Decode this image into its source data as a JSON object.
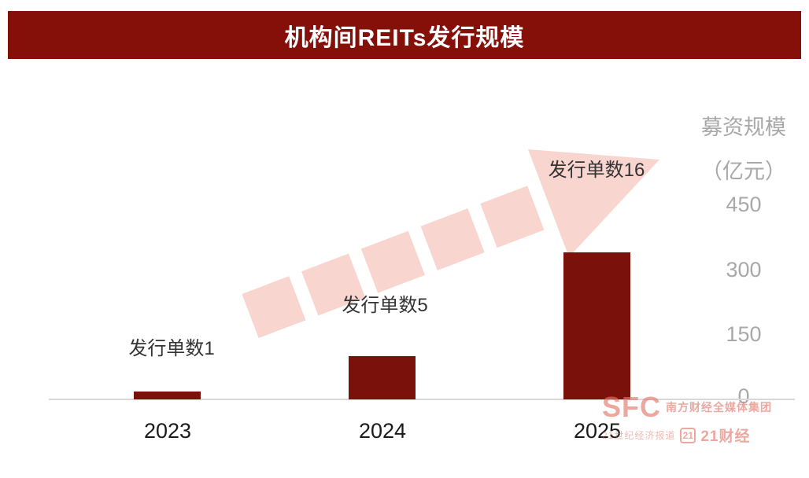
{
  "title": "机构间REITs发行规模",
  "chart_data": {
    "type": "bar",
    "title": "机构间REITs发行规模",
    "categories": [
      "2023",
      "2024",
      "2025"
    ],
    "values": [
      18,
      100,
      340
    ],
    "bar_labels": [
      "发行单数1",
      "发行单数5",
      "发行单数16"
    ],
    "y_axis_title": [
      "募资规模",
      "（亿元）"
    ],
    "yticks": [
      "450",
      "300",
      "150",
      "0"
    ],
    "ylim": [
      0,
      450
    ],
    "grid": false,
    "legend": "none",
    "bar_color": "#7A110B",
    "arrow_color": "#F8D5CE"
  },
  "colors": {
    "title_bg": "#85100A",
    "title_text": "#FFFFFF",
    "axis_text": "#A8A8A8",
    "label_text": "#333333",
    "watermark": "#E27A6C"
  },
  "watermark": {
    "brand": "SFC",
    "brand_text": "南方财经全媒体集团",
    "sub_text": "21世纪经济报道",
    "logo_21": "21",
    "text_21": "21财经"
  }
}
